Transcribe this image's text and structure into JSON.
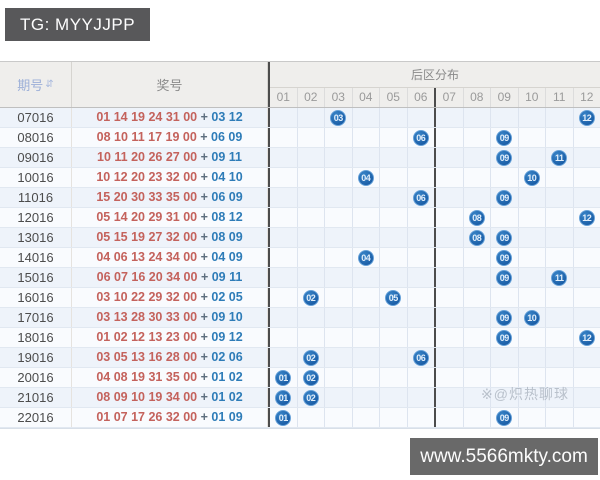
{
  "badge": {
    "label": "TG: MYYJJPP"
  },
  "table": {
    "issue_header": "期号",
    "sort_icon": "⇵",
    "prize_header": "奖号",
    "distribution_header": "后区分布",
    "plus": "+",
    "columns": [
      "01",
      "02",
      "03",
      "04",
      "05",
      "06",
      "07",
      "08",
      "09",
      "10",
      "11",
      "12"
    ],
    "rows": [
      {
        "issue": "07016",
        "front": "01 14 19 24 31 00",
        "back": [
          "03",
          "12"
        ]
      },
      {
        "issue": "08016",
        "front": "08 10 11 17 19 00",
        "back": [
          "06",
          "09"
        ]
      },
      {
        "issue": "09016",
        "front": "10 11 20 26 27 00",
        "back": [
          "09",
          "11"
        ]
      },
      {
        "issue": "10016",
        "front": "10 12 20 23 32 00",
        "back": [
          "04",
          "10"
        ]
      },
      {
        "issue": "11016",
        "front": "15 20 30 33 35 00",
        "back": [
          "06",
          "09"
        ]
      },
      {
        "issue": "12016",
        "front": "05 14 20 29 31 00",
        "back": [
          "08",
          "12"
        ]
      },
      {
        "issue": "13016",
        "front": "05 15 19 27 32 00",
        "back": [
          "08",
          "09"
        ]
      },
      {
        "issue": "14016",
        "front": "04 06 13 24 34 00",
        "back": [
          "04",
          "09"
        ]
      },
      {
        "issue": "15016",
        "front": "06 07 16 20 34 00",
        "back": [
          "09",
          "11"
        ]
      },
      {
        "issue": "16016",
        "front": "03 10 22 29 32 00",
        "back": [
          "02",
          "05"
        ]
      },
      {
        "issue": "17016",
        "front": "03 13 28 30 33 00",
        "back": [
          "09",
          "10"
        ]
      },
      {
        "issue": "18016",
        "front": "01 02 12 13 23 00",
        "back": [
          "09",
          "12"
        ]
      },
      {
        "issue": "19016",
        "front": "03 05 13 16 28 00",
        "back": [
          "02",
          "06"
        ]
      },
      {
        "issue": "20016",
        "front": "04 08 19 31 35 00",
        "back": [
          "01",
          "02"
        ]
      },
      {
        "issue": "21016",
        "front": "08 09 10 19 34 00",
        "back": [
          "01",
          "02"
        ]
      },
      {
        "issue": "22016",
        "front": "01 07 17 26 32 00",
        "back": [
          "01",
          "09"
        ]
      }
    ]
  },
  "chart_data": {
    "type": "table",
    "title": "后区分布",
    "columns": [
      "期号",
      "奖号",
      "01",
      "02",
      "03",
      "04",
      "05",
      "06",
      "07",
      "08",
      "09",
      "10",
      "11",
      "12"
    ],
    "x_categories": [
      "01",
      "02",
      "03",
      "04",
      "05",
      "06",
      "07",
      "08",
      "09",
      "10",
      "11",
      "12"
    ],
    "rows": [
      {
        "issue": "07016",
        "prize": "01 14 19 24 31 00 + 03 12",
        "back_zone": [
          3,
          12
        ]
      },
      {
        "issue": "08016",
        "prize": "08 10 11 17 19 00 + 06 09",
        "back_zone": [
          6,
          9
        ]
      },
      {
        "issue": "09016",
        "prize": "10 11 20 26 27 00 + 09 11",
        "back_zone": [
          9,
          11
        ]
      },
      {
        "issue": "10016",
        "prize": "10 12 20 23 32 00 + 04 10",
        "back_zone": [
          4,
          10
        ]
      },
      {
        "issue": "11016",
        "prize": "15 20 30 33 35 00 + 06 09",
        "back_zone": [
          6,
          9
        ]
      },
      {
        "issue": "12016",
        "prize": "05 14 20 29 31 00 + 08 12",
        "back_zone": [
          8,
          12
        ]
      },
      {
        "issue": "13016",
        "prize": "05 15 19 27 32 00 + 08 09",
        "back_zone": [
          8,
          9
        ]
      },
      {
        "issue": "14016",
        "prize": "04 06 13 24 34 00 + 04 09",
        "back_zone": [
          4,
          9
        ]
      },
      {
        "issue": "15016",
        "prize": "06 07 16 20 34 00 + 09 11",
        "back_zone": [
          9,
          11
        ]
      },
      {
        "issue": "16016",
        "prize": "03 10 22 29 32 00 + 02 05",
        "back_zone": [
          2,
          5
        ]
      },
      {
        "issue": "17016",
        "prize": "03 13 28 30 33 00 + 09 10",
        "back_zone": [
          9,
          10
        ]
      },
      {
        "issue": "18016",
        "prize": "01 02 12 13 23 00 + 09 12",
        "back_zone": [
          9,
          12
        ]
      },
      {
        "issue": "19016",
        "prize": "03 05 13 16 28 00 + 02 06",
        "back_zone": [
          2,
          6
        ]
      },
      {
        "issue": "20016",
        "prize": "04 08 19 31 35 00 + 01 02",
        "back_zone": [
          1,
          2
        ]
      },
      {
        "issue": "21016",
        "prize": "08 09 10 19 34 00 + 01 02",
        "back_zone": [
          1,
          2
        ]
      },
      {
        "issue": "22016",
        "prize": "01 07 17 26 32 00 + 01 09",
        "back_zone": [
          1,
          9
        ]
      }
    ],
    "layout": {
      "grid": true,
      "thick_divider_after_column": "06",
      "marker": "numbered blue ball"
    }
  },
  "watermark": {
    "icon": "※",
    "text": "@炽热聊球"
  },
  "footer": {
    "url": "www.5566mkty.com"
  },
  "colors": {
    "front_number": "#c4625c",
    "back_number": "#2e7cb8",
    "ball_fill": "#1e66ad",
    "badge_bg": "#58585a",
    "banner_bg": "#696969",
    "issue_header_text": "#9db0d8"
  }
}
